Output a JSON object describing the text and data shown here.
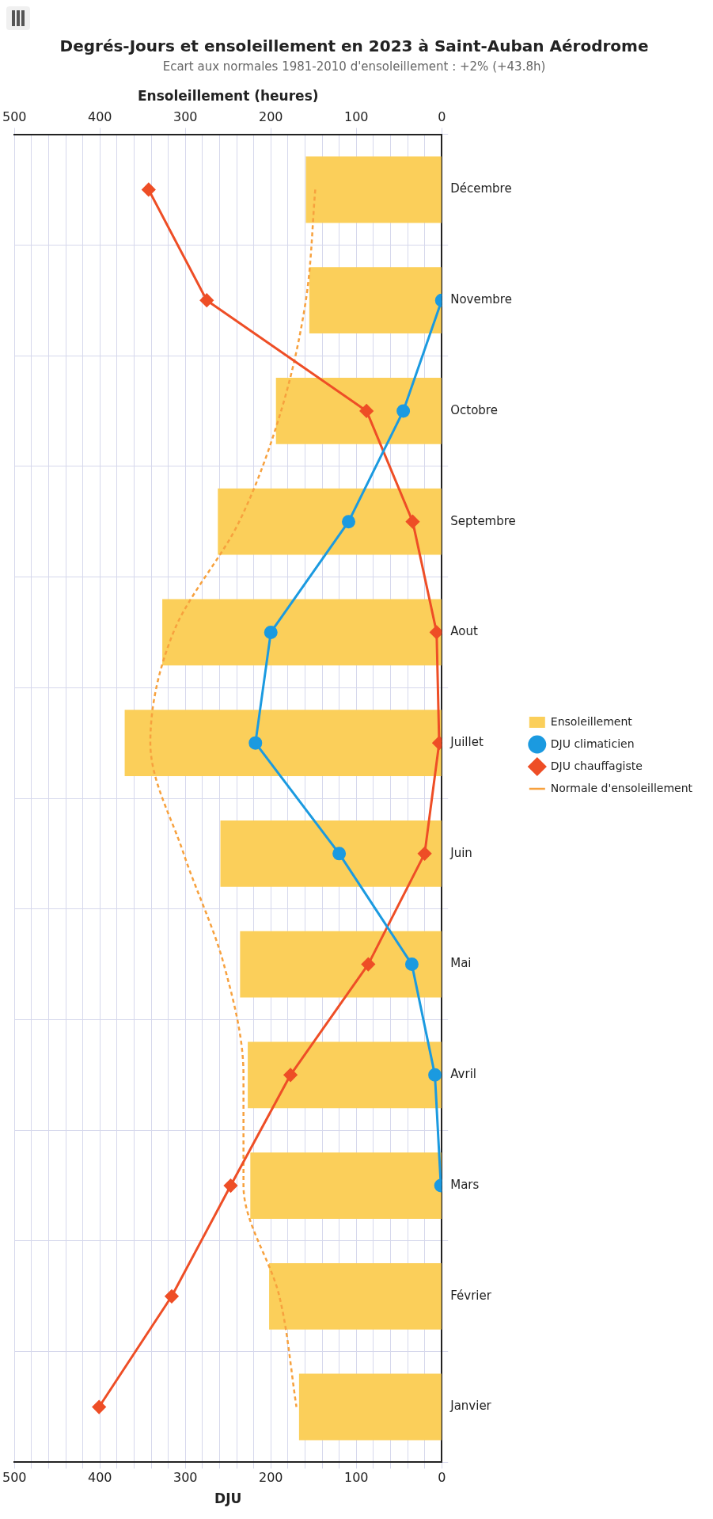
{
  "chart_data": {
    "type": "bar",
    "orientation": "horizontal",
    "title": "Degrés-Jours et ensoleillement en 2023 à Saint-Auban Aérodrome",
    "subtitle": "Ecart aux normales 1981-2010 d'ensoleillement : +2% (+43.8h)",
    "xlabel": "DJU",
    "x2label": "Ensoleillement (heures)",
    "categories": [
      "Décembre",
      "Novembre",
      "Octobre",
      "Septembre",
      "Aout",
      "Juillet",
      "Juin",
      "Mai",
      "Avril",
      "Mars",
      "Février",
      "Janvier"
    ],
    "series": [
      {
        "name": "Ensoleillement",
        "axis": "x2",
        "color": "#fbcf5a",
        "values": [
          159,
          155,
          194,
          262,
          327,
          371,
          259,
          236,
          227,
          224,
          202,
          167
        ]
      },
      {
        "name": "DJU climaticien",
        "type": "line",
        "color": "#1b9ae0",
        "marker": "circle",
        "values": [
          null,
          0,
          45,
          109,
          200,
          218,
          120,
          35,
          8,
          1,
          null,
          null
        ]
      },
      {
        "name": "DJU chauffagiste",
        "type": "line",
        "color": "#ee4e26",
        "marker": "diamond",
        "values": [
          343,
          275,
          88,
          34,
          6,
          3,
          20,
          86,
          177,
          247,
          316,
          401
        ]
      },
      {
        "name": "Normale d'ensoleillement",
        "type": "line",
        "axis": "x2",
        "color": "#f7a13e",
        "marker": "none",
        "line_style": "dashed",
        "values": [
          148,
          159,
          188,
          237,
          314,
          341,
          302,
          255,
          232,
          232,
          190,
          170
        ]
      }
    ],
    "xlim": [
      500,
      0
    ],
    "xticks": [
      {
        "value": 500,
        "label": "500"
      },
      {
        "value": 480,
        "label": null
      },
      {
        "value": 460,
        "label": null
      },
      {
        "value": 440,
        "label": null
      },
      {
        "value": 420,
        "label": null
      },
      400,
      {
        "value": 380,
        "label": null
      },
      {
        "value": 360,
        "label": null
      },
      {
        "value": 340,
        "label": null
      },
      {
        "value": 320,
        "label": null
      },
      300,
      {
        "value": 280,
        "label": null
      },
      {
        "value": 260,
        "label": null
      },
      {
        "value": 240,
        "label": null
      },
      {
        "value": 220,
        "label": null
      },
      200,
      {
        "value": 180,
        "label": null
      },
      {
        "value": 160,
        "label": null
      },
      {
        "value": 140,
        "label": null
      },
      {
        "value": 120,
        "label": null
      },
      100,
      {
        "value": 80,
        "label": null
      },
      {
        "value": 60,
        "label": null
      },
      {
        "value": 40,
        "label": null
      },
      {
        "value": 20,
        "label": null
      },
      0
    ],
    "x2lim": [
      500,
      0
    ],
    "x2ticks": [
      500,
      400,
      300,
      200,
      100,
      0
    ],
    "grid": true,
    "legend": "right"
  }
}
